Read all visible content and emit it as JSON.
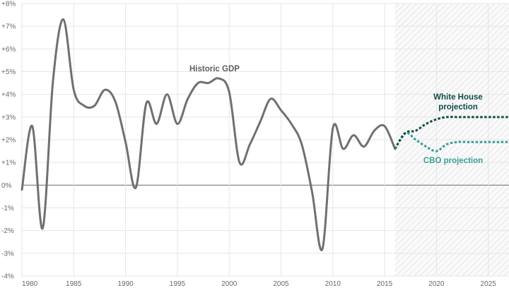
{
  "chart_data": {
    "type": "line",
    "xlim": [
      1980,
      2027
    ],
    "ylim": [
      -4,
      8
    ],
    "x_ticks": [
      1980,
      1985,
      1990,
      1995,
      2000,
      2005,
      2010,
      2015,
      2020,
      2025
    ],
    "y_ticks": [
      -4,
      -3,
      -2,
      -1,
      0,
      1,
      2,
      3,
      4,
      5,
      6,
      7,
      8
    ],
    "y_tick_labels": [
      "-4%",
      "-3%",
      "-2%",
      "-1%",
      "0%",
      "+1%",
      "+2%",
      "+3%",
      "+4%",
      "+5%",
      "+6%",
      "+7%",
      "+8%"
    ],
    "grid": true,
    "projection_region_start": 2016,
    "series": [
      {
        "name": "Historic GDP",
        "style": "solid",
        "color": "#707070",
        "x": [
          1980,
          1981,
          1982,
          1983,
          1984,
          1985,
          1986,
          1987,
          1988,
          1989,
          1990,
          1991,
          1992,
          1993,
          1994,
          1995,
          1996,
          1997,
          1998,
          1999,
          2000,
          2001,
          2002,
          2003,
          2004,
          2005,
          2006,
          2007,
          2008,
          2009,
          2010,
          2011,
          2012,
          2013,
          2014,
          2015,
          2016
        ],
        "y": [
          -0.2,
          2.6,
          -1.9,
          4.6,
          7.3,
          4.2,
          3.5,
          3.5,
          4.2,
          3.7,
          1.9,
          -0.1,
          3.6,
          2.7,
          4.0,
          2.7,
          3.8,
          4.5,
          4.5,
          4.7,
          4.1,
          1.0,
          1.8,
          2.8,
          3.8,
          3.3,
          2.7,
          1.8,
          -0.3,
          -2.8,
          2.5,
          1.6,
          2.2,
          1.7,
          2.4,
          2.6,
          1.6
        ]
      },
      {
        "name": "White House projection",
        "style": "dotted",
        "color": "#0f4d48",
        "x": [
          2016,
          2017,
          2018,
          2019,
          2020,
          2021,
          2022,
          2023,
          2024,
          2025,
          2026,
          2027
        ],
        "y": [
          1.6,
          2.3,
          2.4,
          2.7,
          2.9,
          3.0,
          3.0,
          3.0,
          3.0,
          3.0,
          3.0,
          3.0
        ]
      },
      {
        "name": "CBO projection",
        "style": "dotted",
        "color": "#3a9e96",
        "x": [
          2016,
          2017,
          2018,
          2019,
          2020,
          2021,
          2022,
          2023,
          2024,
          2025,
          2026,
          2027
        ],
        "y": [
          1.6,
          2.3,
          2.0,
          1.7,
          1.5,
          1.8,
          1.9,
          1.9,
          1.9,
          1.9,
          1.9,
          1.9
        ]
      }
    ],
    "annotations": [
      {
        "text": "Historic GDP",
        "series": 0
      },
      {
        "lines": [
          "White House",
          "projection"
        ],
        "series": 1
      },
      {
        "text": "CBO projection",
        "series": 2
      }
    ]
  }
}
